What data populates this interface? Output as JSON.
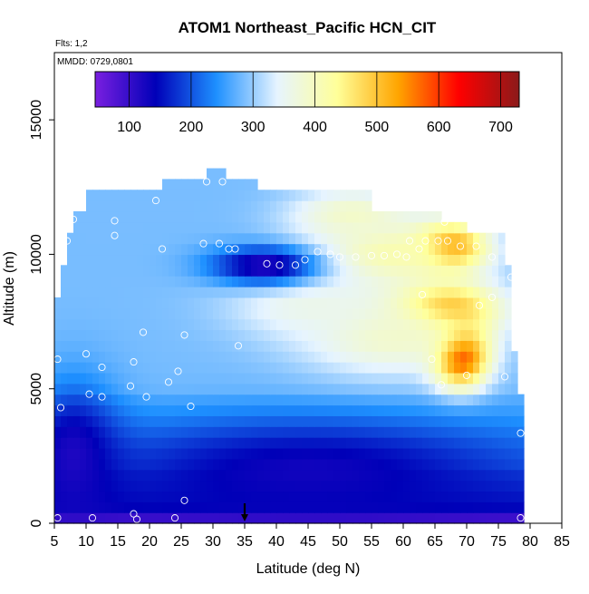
{
  "chart_data": {
    "type": "heatmap",
    "title": "ATOM1 Northeast_Pacific HCN_CIT",
    "annotations": {
      "flights": "Flts: 1,2",
      "dates": "MMDD: 0729,0801"
    },
    "xlabel": "Latitude (deg N)",
    "ylabel": "Altitude (m)",
    "xlim": [
      5,
      85
    ],
    "ylim": [
      0,
      17500
    ],
    "x_ticks": [
      "5",
      "10",
      "15",
      "20",
      "25",
      "30",
      "35",
      "40",
      "45",
      "50",
      "55",
      "60",
      "65",
      "70",
      "75",
      "80",
      "85"
    ],
    "y_ticks": [
      "0",
      "5000",
      "10000",
      "15000"
    ],
    "colorbar": {
      "min": 45,
      "max": 730,
      "ticks": [
        "100",
        "200",
        "300",
        "400",
        "500",
        "600",
        "700"
      ],
      "colors": [
        "#7a1fe0",
        "#0000b8",
        "#1e90ff",
        "#e6f4ff",
        "#ffff99",
        "#ffa500",
        "#ff0000",
        "#8b1a1a"
      ]
    },
    "grid": false,
    "marker": {
      "latitude": 35,
      "altitude": 0,
      "symbol": "down-arrow"
    },
    "profile": [
      {
        "alt": 12700,
        "lat_min": 29,
        "lat_max": 32
      },
      {
        "alt": 12300,
        "lat_min": 22,
        "lat_max": 37
      },
      {
        "alt": 11700,
        "lat_min": 10,
        "lat_max": 55
      },
      {
        "alt": 11100,
        "lat_min": 8,
        "lat_max": 66
      },
      {
        "alt": 10700,
        "lat_min": 8,
        "lat_max": 70
      },
      {
        "alt": 9800,
        "lat_min": 7,
        "lat_max": 76
      },
      {
        "alt": 8500,
        "lat_min": 6,
        "lat_max": 77
      },
      {
        "alt": 6500,
        "lat_min": 5,
        "lat_max": 77
      },
      {
        "alt": 5000,
        "lat_min": 5,
        "lat_max": 78
      },
      {
        "alt": 3500,
        "lat_min": 5,
        "lat_max": 79
      },
      {
        "alt": 0,
        "lat_min": 5,
        "lat_max": 79
      }
    ],
    "features": [
      {
        "lat": 69,
        "alt": 6300,
        "value": 700,
        "sx": 3.0,
        "sy": 800
      },
      {
        "lat": 66,
        "alt": 8000,
        "value": 580,
        "sx": 6,
        "sy": 700
      },
      {
        "lat": 67,
        "alt": 10300,
        "value": 620,
        "sx": 4,
        "sy": 600
      },
      {
        "lat": 58,
        "alt": 10000,
        "value": 420,
        "sx": 9,
        "sy": 900
      },
      {
        "lat": 52,
        "alt": 11500,
        "value": 390,
        "sx": 7,
        "sy": 700
      },
      {
        "lat": 58,
        "alt": 7000,
        "value": 390,
        "sx": 10,
        "sy": 1100
      },
      {
        "lat": 45,
        "alt": 8200,
        "value": 360,
        "sx": 9,
        "sy": 900
      },
      {
        "lat": 38,
        "alt": 9600,
        "value": 110,
        "sx": 6,
        "sy": 500
      },
      {
        "lat": 45,
        "alt": 2000,
        "value": 130,
        "sx": 22,
        "sy": 1300
      },
      {
        "lat": 8,
        "alt": 2500,
        "value": 120,
        "sx": 5,
        "sy": 1800
      }
    ],
    "observations": [
      {
        "lat": 5.5,
        "alt": 200
      },
      {
        "lat": 11,
        "alt": 200
      },
      {
        "lat": 17.5,
        "alt": 350
      },
      {
        "lat": 18,
        "alt": 150
      },
      {
        "lat": 24,
        "alt": 200
      },
      {
        "lat": 25.5,
        "alt": 850
      },
      {
        "lat": 78.5,
        "alt": 200
      },
      {
        "lat": 78.5,
        "alt": 3350
      },
      {
        "lat": 6,
        "alt": 4300
      },
      {
        "lat": 10.5,
        "alt": 4800
      },
      {
        "lat": 12.5,
        "alt": 4700
      },
      {
        "lat": 19.5,
        "alt": 4700
      },
      {
        "lat": 23,
        "alt": 5250
      },
      {
        "lat": 26.5,
        "alt": 4350
      },
      {
        "lat": 17,
        "alt": 5100
      },
      {
        "lat": 24.5,
        "alt": 5650
      },
      {
        "lat": 5.5,
        "alt": 6100
      },
      {
        "lat": 10,
        "alt": 6300
      },
      {
        "lat": 12.5,
        "alt": 5800
      },
      {
        "lat": 17.5,
        "alt": 6000
      },
      {
        "lat": 25.5,
        "alt": 7000
      },
      {
        "lat": 19,
        "alt": 7100
      },
      {
        "lat": 34,
        "alt": 6600
      },
      {
        "lat": 66,
        "alt": 5150
      },
      {
        "lat": 64.5,
        "alt": 6100
      },
      {
        "lat": 70,
        "alt": 5500
      },
      {
        "lat": 76,
        "alt": 5450
      },
      {
        "lat": 63,
        "alt": 8500
      },
      {
        "lat": 72,
        "alt": 8100
      },
      {
        "lat": 74,
        "alt": 8400
      },
      {
        "lat": 77,
        "alt": 9150
      },
      {
        "lat": 7,
        "alt": 10500
      },
      {
        "lat": 8,
        "alt": 11300
      },
      {
        "lat": 14.5,
        "alt": 11250
      },
      {
        "lat": 14.5,
        "alt": 10700
      },
      {
        "lat": 22,
        "alt": 10200
      },
      {
        "lat": 21,
        "alt": 12000
      },
      {
        "lat": 29,
        "alt": 12700
      },
      {
        "lat": 31.5,
        "alt": 12700
      },
      {
        "lat": 28.5,
        "alt": 10400
      },
      {
        "lat": 31,
        "alt": 10400
      },
      {
        "lat": 32.5,
        "alt": 10200
      },
      {
        "lat": 33.5,
        "alt": 10200
      },
      {
        "lat": 38.5,
        "alt": 9650
      },
      {
        "lat": 40.5,
        "alt": 9600
      },
      {
        "lat": 43,
        "alt": 9600
      },
      {
        "lat": 44.5,
        "alt": 9800
      },
      {
        "lat": 46.5,
        "alt": 10100
      },
      {
        "lat": 48.5,
        "alt": 10000
      },
      {
        "lat": 50,
        "alt": 9900
      },
      {
        "lat": 52.5,
        "alt": 9900
      },
      {
        "lat": 55,
        "alt": 9950
      },
      {
        "lat": 57,
        "alt": 9950
      },
      {
        "lat": 59,
        "alt": 10000
      },
      {
        "lat": 61,
        "alt": 10500
      },
      {
        "lat": 62.5,
        "alt": 10200
      },
      {
        "lat": 63.5,
        "alt": 10500
      },
      {
        "lat": 65.5,
        "alt": 10500
      },
      {
        "lat": 67,
        "alt": 10500
      },
      {
        "lat": 69,
        "alt": 10300
      },
      {
        "lat": 71.5,
        "alt": 10300
      },
      {
        "lat": 74,
        "alt": 9900
      },
      {
        "lat": 66.5,
        "alt": 11200
      },
      {
        "lat": 60.5,
        "alt": 9900
      }
    ]
  }
}
